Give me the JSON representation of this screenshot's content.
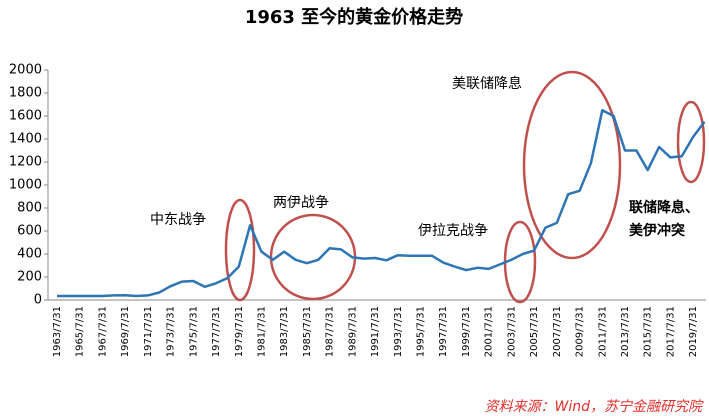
{
  "chart_data": {
    "type": "line",
    "title": "1963 至今的黄金价格走势",
    "categories": [
      "1963/7/31",
      null,
      "1965/7/31",
      null,
      "1967/7/31",
      null,
      "1969/7/31",
      null,
      "1971/7/31",
      null,
      "1973/7/31",
      null,
      "1975/7/31",
      null,
      "1977/7/31",
      null,
      "1979/7/31",
      null,
      "1981/7/31",
      null,
      "1983/7/31",
      null,
      "1985/7/31",
      null,
      "1987/7/31",
      null,
      "1989/7/31",
      null,
      "1991/7/31",
      null,
      "1993/7/31",
      null,
      "1995/7/31",
      null,
      "1997/7/31",
      null,
      "1999/7/31",
      null,
      "2001/7/31",
      null,
      "2003/7/31",
      null,
      "2005/7/31",
      null,
      "2007/7/31",
      null,
      "2009/7/31",
      null,
      "2011/7/31",
      null,
      "2013/7/31",
      null,
      "2015/7/31",
      null,
      "2017/7/31",
      null,
      "2019/7/31",
      null
    ],
    "values": [
      35,
      35,
      35,
      35,
      35,
      40,
      42,
      35,
      40,
      65,
      120,
      160,
      165,
      115,
      145,
      190,
      290,
      650,
      420,
      350,
      420,
      350,
      320,
      350,
      450,
      440,
      370,
      360,
      365,
      345,
      390,
      385,
      385,
      385,
      325,
      290,
      260,
      280,
      270,
      310,
      350,
      400,
      430,
      630,
      670,
      920,
      950,
      1190,
      1650,
      1600,
      1300,
      1300,
      1130,
      1330,
      1240,
      1250,
      1420,
      1550
    ],
    "color": "#2e75b6",
    "ylim": [
      0,
      2000
    ],
    "yticks": [
      0,
      200,
      400,
      600,
      800,
      1000,
      1200,
      1400,
      1600,
      1800,
      2000
    ],
    "annotations": [
      "中东战争",
      "两伊战争",
      "伊拉克战争",
      "美联储降息",
      "联储降息、",
      "美伊冲突"
    ],
    "source": "资料来源：Wind，苏宁金融研究院"
  }
}
